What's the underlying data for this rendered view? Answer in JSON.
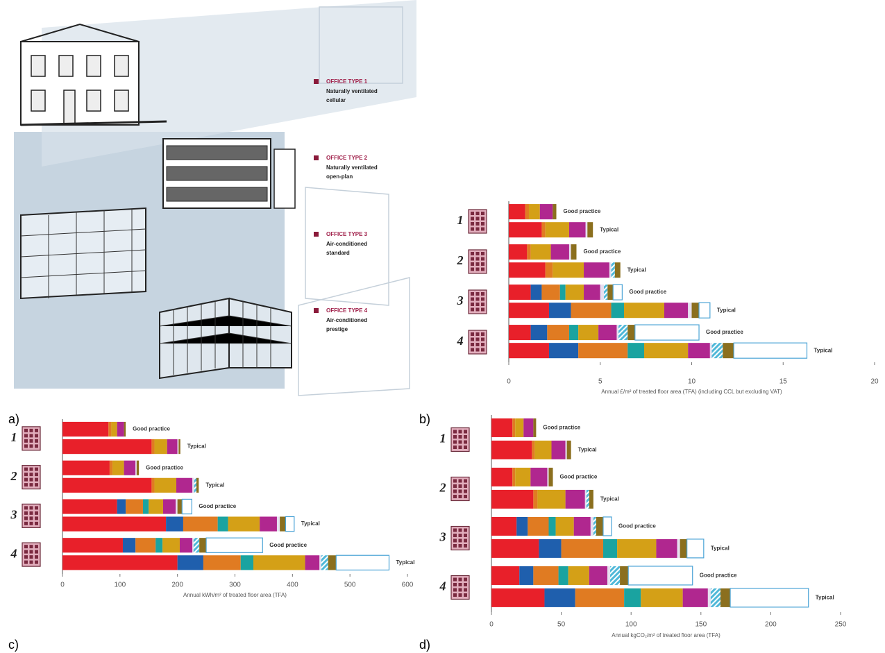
{
  "panel_labels": [
    "a)",
    "b)",
    "c)",
    "d)"
  ],
  "illustration": {
    "office_types": [
      {
        "label": "OFFICE TYPE 1",
        "description": [
          "Naturally ventilated",
          "cellular"
        ]
      },
      {
        "label": "OFFICE TYPE 2",
        "description": [
          "Naturally ventilated",
          "open-plan"
        ]
      },
      {
        "label": "OFFICE TYPE 3",
        "description": [
          "Air-conditioned",
          "standard"
        ]
      },
      {
        "label": "OFFICE TYPE 4",
        "description": [
          "Air-conditioned",
          "prestige"
        ]
      }
    ]
  },
  "chart_data": [
    {
      "type": "stacked-bar-horizontal",
      "xlabel": "Annual £/m² of treated floor area (TFA) (including CCL but excluding VAT)",
      "groups": [
        "1",
        "2",
        "3",
        "4"
      ],
      "categories": [
        "Good practice",
        "Typical",
        "Good practice",
        "Typical",
        "Good practice",
        "Typical",
        "Good practice",
        "Typical"
      ],
      "xlim": [
        0,
        20
      ],
      "xticks": [
        0,
        5,
        10,
        15,
        20
      ],
      "series": [
        {
          "color": "#e8202a",
          "values": [
            0.9,
            1.8,
            1.0,
            2.0,
            1.2,
            2.2,
            1.2,
            2.2
          ]
        },
        {
          "color": "#1f5fad",
          "values": [
            0,
            0,
            0,
            0,
            0.6,
            1.2,
            0.9,
            1.6
          ]
        },
        {
          "color": "#e07b22",
          "values": [
            0.2,
            0.2,
            0.2,
            0.4,
            1.0,
            2.2,
            1.2,
            2.7
          ]
        },
        {
          "color": "#1aa3a0",
          "values": [
            0,
            0,
            0,
            0,
            0.3,
            0.7,
            0.5,
            0.9
          ]
        },
        {
          "color": "#d4a017",
          "values": [
            0.6,
            1.3,
            1.1,
            1.7,
            1.0,
            2.2,
            1.1,
            2.4
          ]
        },
        {
          "color": "#b0278f",
          "values": [
            0.7,
            0.9,
            1.0,
            1.4,
            0.9,
            1.3,
            1.0,
            1.2
          ]
        },
        {
          "color": "#e6dff0",
          "values": [
            0,
            0.1,
            0.1,
            0.1,
            0.2,
            0.2,
            0.1,
            0.1
          ]
        },
        {
          "color": "#4fb8d8",
          "pattern": "hatch",
          "values": [
            0,
            0,
            0,
            0.2,
            0.2,
            0,
            0.5,
            0.6
          ]
        },
        {
          "color": "#8b6f1e",
          "values": [
            0.2,
            0.3,
            0.3,
            0.3,
            0.3,
            0.4,
            0.4,
            0.6
          ]
        },
        {
          "color": "#ffffff",
          "outline": "#4aa3d6",
          "values": [
            0,
            0,
            0,
            0,
            0.5,
            0.6,
            3.5,
            4.0
          ]
        }
      ]
    },
    {
      "type": "stacked-bar-horizontal",
      "xlabel": "Annual kWh/m² of treated floor area (TFA)",
      "groups": [
        "1",
        "2",
        "3",
        "4"
      ],
      "categories": [
        "Good practice",
        "Typical",
        "Good practice",
        "Typical",
        "Good practice",
        "Typical",
        "Good practice",
        "Typical"
      ],
      "xlim": [
        0,
        600
      ],
      "xticks": [
        0,
        100,
        200,
        300,
        400,
        500,
        600
      ],
      "series": [
        {
          "color": "#e8202a",
          "values": [
            80,
            155,
            82,
            155,
            95,
            180,
            105,
            200
          ]
        },
        {
          "color": "#1f5fad",
          "values": [
            0,
            0,
            0,
            0,
            15,
            30,
            22,
            45
          ]
        },
        {
          "color": "#e07b22",
          "values": [
            5,
            5,
            5,
            5,
            30,
            60,
            35,
            65
          ]
        },
        {
          "color": "#1aa3a0",
          "values": [
            0,
            0,
            0,
            0,
            10,
            18,
            12,
            22
          ]
        },
        {
          "color": "#d4a017",
          "values": [
            10,
            22,
            20,
            38,
            25,
            55,
            30,
            90
          ]
        },
        {
          "color": "#b0278f",
          "values": [
            12,
            18,
            20,
            28,
            22,
            30,
            22,
            25
          ]
        },
        {
          "color": "#e6dff0",
          "values": [
            0,
            2,
            2,
            3,
            3,
            5,
            2,
            3
          ]
        },
        {
          "color": "#4fb8d8",
          "pattern": "hatch",
          "values": [
            0,
            0,
            0,
            4,
            0,
            0,
            10,
            12
          ]
        },
        {
          "color": "#8b6f1e",
          "values": [
            3,
            3,
            4,
            4,
            8,
            10,
            12,
            14
          ]
        },
        {
          "color": "#ffffff",
          "outline": "#4aa3d6",
          "values": [
            0,
            0,
            0,
            0,
            17,
            15,
            98,
            92
          ]
        }
      ]
    },
    {
      "type": "stacked-bar-horizontal",
      "xlabel": "Annual kgCO₂/m² of treated floor area (TFA)",
      "groups": [
        "1",
        "2",
        "3",
        "4"
      ],
      "categories": [
        "Good practice",
        "Typical",
        "Good practice",
        "Typical",
        "Good practice",
        "Typical",
        "Good practice",
        "Typical"
      ],
      "xlim": [
        0,
        250
      ],
      "xticks": [
        0,
        50,
        100,
        150,
        200,
        250
      ],
      "series": [
        {
          "color": "#e8202a",
          "values": [
            15,
            29,
            15,
            30,
            18,
            34,
            20,
            38
          ]
        },
        {
          "color": "#1f5fad",
          "values": [
            0,
            0,
            0,
            0,
            8,
            16,
            10,
            22
          ]
        },
        {
          "color": "#e07b22",
          "values": [
            2,
            2,
            2,
            3,
            15,
            30,
            18,
            35
          ]
        },
        {
          "color": "#1aa3a0",
          "values": [
            0,
            0,
            0,
            0,
            5,
            10,
            7,
            12
          ]
        },
        {
          "color": "#d4a017",
          "values": [
            6,
            12,
            11,
            20,
            13,
            28,
            15,
            30
          ]
        },
        {
          "color": "#b0278f",
          "values": [
            7,
            10,
            12,
            14,
            12,
            15,
            13,
            18
          ]
        },
        {
          "color": "#e6dff0",
          "values": [
            0,
            1,
            1,
            1,
            2,
            2,
            2,
            2
          ]
        },
        {
          "color": "#4fb8d8",
          "pattern": "hatch",
          "values": [
            0,
            0,
            0,
            2,
            2,
            0,
            7,
            7
          ]
        },
        {
          "color": "#8b6f1e",
          "values": [
            2,
            3,
            3,
            3,
            5,
            5,
            6,
            7
          ]
        },
        {
          "color": "#ffffff",
          "outline": "#4aa3d6",
          "values": [
            0,
            0,
            0,
            0,
            6,
            12,
            46,
            56
          ]
        }
      ]
    }
  ]
}
